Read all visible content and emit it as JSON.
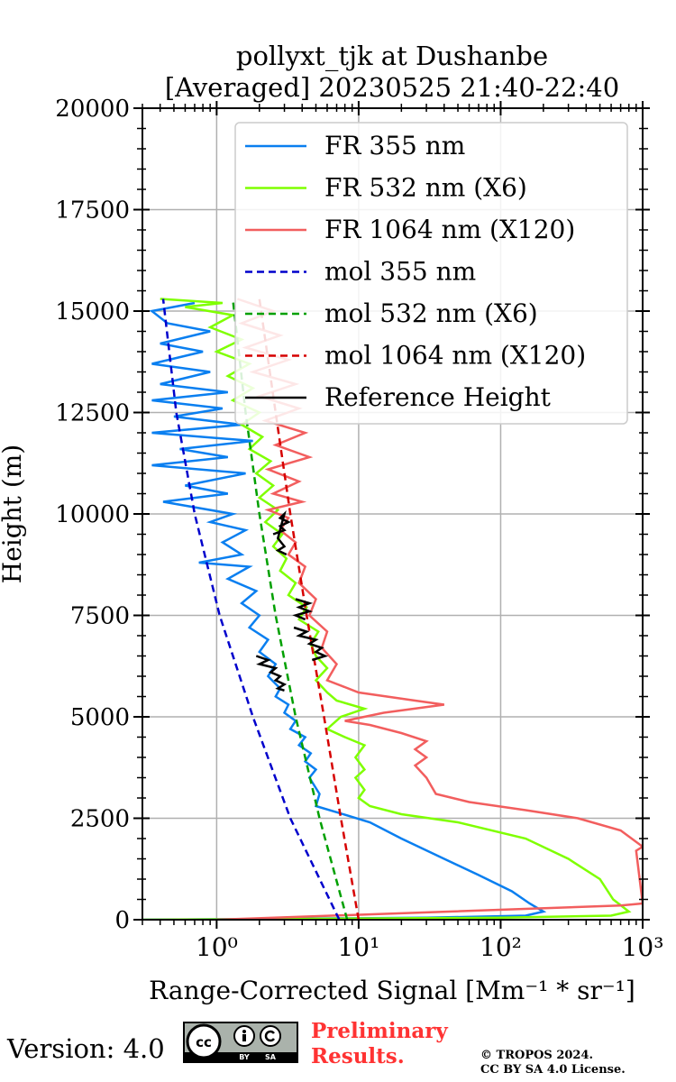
{
  "chart_data": {
    "type": "line",
    "title": [
      "pollyxt_tjk at Dushanbe",
      "[Averaged] 20230525 21:40-22:40"
    ],
    "xlabel": "Range-Corrected Signal [Mm⁻¹ * sr⁻¹]",
    "ylabel": "Height (m)",
    "xscale": "log",
    "xlim": [
      0.3,
      1000
    ],
    "ylim": [
      0,
      20000
    ],
    "xticks": [
      {
        "value": 1,
        "label": "10⁰"
      },
      {
        "value": 10,
        "label": "10¹"
      },
      {
        "value": 100,
        "label": "10²"
      },
      {
        "value": 1000,
        "label": "10³"
      }
    ],
    "yticks": [
      "0",
      "2500",
      "5000",
      "7500",
      "10000",
      "12500",
      "15000",
      "17500",
      "20000"
    ],
    "grid": true,
    "legend_position": "top-right",
    "series": [
      {
        "name": "FR 355 nm",
        "color": "#0a7ff0",
        "style": "solid",
        "points": [
          [
            0.3,
            0
          ],
          [
            30,
            50
          ],
          [
            150,
            100
          ],
          [
            200,
            200
          ],
          [
            160,
            400
          ],
          [
            120,
            700
          ],
          [
            70,
            1100
          ],
          [
            40,
            1500
          ],
          [
            20,
            2000
          ],
          [
            12,
            2400
          ],
          [
            7,
            2650
          ],
          [
            5,
            2800
          ],
          [
            5.3,
            3100
          ],
          [
            4.5,
            3500
          ],
          [
            5,
            3700
          ],
          [
            4.2,
            3900
          ],
          [
            4.6,
            4100
          ],
          [
            3.8,
            4300
          ],
          [
            4.2,
            4500
          ],
          [
            3.3,
            4700
          ],
          [
            3.6,
            4900
          ],
          [
            3,
            5100
          ],
          [
            3.2,
            5300
          ],
          [
            2.6,
            5500
          ],
          [
            2.8,
            5700
          ],
          [
            2.3,
            6000
          ],
          [
            2.6,
            6300
          ],
          [
            2,
            6600
          ],
          [
            2.3,
            6900
          ],
          [
            1.7,
            7200
          ],
          [
            2,
            7500
          ],
          [
            1.5,
            7800
          ],
          [
            1.9,
            8100
          ],
          [
            1.2,
            8400
          ],
          [
            1.7,
            8700
          ],
          [
            0.75,
            8800
          ],
          [
            1.5,
            9000
          ],
          [
            1.1,
            9300
          ],
          [
            1.6,
            9600
          ],
          [
            0.9,
            9800
          ],
          [
            1.3,
            10000
          ],
          [
            0.42,
            10300
          ],
          [
            1.2,
            10500
          ],
          [
            0.6,
            10700
          ],
          [
            1.6,
            11000
          ],
          [
            0.35,
            11200
          ],
          [
            1.2,
            11400
          ],
          [
            0.55,
            11600
          ],
          [
            1.8,
            11800
          ],
          [
            0.35,
            12000
          ],
          [
            1.5,
            12200
          ],
          [
            0.5,
            12400
          ],
          [
            1.1,
            12600
          ],
          [
            0.35,
            12800
          ],
          [
            1.2,
            13000
          ],
          [
            0.4,
            13200
          ],
          [
            0.9,
            13500
          ],
          [
            0.35,
            13700
          ],
          [
            0.8,
            14000
          ],
          [
            0.4,
            14200
          ],
          [
            0.9,
            14500
          ],
          [
            0.45,
            14700
          ],
          [
            0.35,
            15000
          ],
          [
            0.7,
            15200
          ]
        ]
      },
      {
        "name": "FR 532 nm (X6)",
        "color": "#7fff00",
        "style": "solid",
        "points": [
          [
            0.3,
            0
          ],
          [
            100,
            50
          ],
          [
            600,
            100
          ],
          [
            800,
            200
          ],
          [
            620,
            500
          ],
          [
            500,
            1000
          ],
          [
            300,
            1500
          ],
          [
            150,
            2000
          ],
          [
            50,
            2400
          ],
          [
            20,
            2600
          ],
          [
            12,
            2800
          ],
          [
            10,
            3000
          ],
          [
            11,
            3200
          ],
          [
            9.5,
            3500
          ],
          [
            11,
            3700
          ],
          [
            9.5,
            4000
          ],
          [
            11,
            4300
          ],
          [
            8,
            4500
          ],
          [
            6,
            4700
          ],
          [
            7.5,
            5000
          ],
          [
            11,
            5200
          ],
          [
            7,
            5400
          ],
          [
            6,
            5600
          ],
          [
            5,
            5900
          ],
          [
            6,
            6200
          ],
          [
            5,
            6500
          ],
          [
            4.6,
            6800
          ],
          [
            5.2,
            7100
          ],
          [
            3.8,
            7400
          ],
          [
            4.3,
            7700
          ],
          [
            3.2,
            8000
          ],
          [
            3.6,
            8300
          ],
          [
            2.8,
            8600
          ],
          [
            3.1,
            8900
          ],
          [
            2.5,
            9200
          ],
          [
            2.9,
            9500
          ],
          [
            2.2,
            9800
          ],
          [
            2.7,
            10100
          ],
          [
            2,
            10400
          ],
          [
            2.5,
            10700
          ],
          [
            1.9,
            11000
          ],
          [
            2.4,
            11300
          ],
          [
            1.7,
            11600
          ],
          [
            2.1,
            11900
          ],
          [
            1.5,
            12200
          ],
          [
            2,
            12500
          ],
          [
            1.3,
            12800
          ],
          [
            1.8,
            13100
          ],
          [
            1.2,
            13400
          ],
          [
            1.7,
            13700
          ],
          [
            1,
            14000
          ],
          [
            1.5,
            14300
          ],
          [
            0.9,
            14600
          ],
          [
            1.3,
            14900
          ],
          [
            0.6,
            15100
          ],
          [
            1.1,
            15200
          ],
          [
            0.4,
            15300
          ]
        ]
      },
      {
        "name": "FR 1064 nm (X120)",
        "color": "#f25e5e",
        "style": "solid",
        "points": [
          [
            1,
            0
          ],
          [
            700,
            350
          ],
          [
            1000,
            400
          ],
          [
            900,
            1700
          ],
          [
            1000,
            1800
          ],
          [
            700,
            2200
          ],
          [
            350,
            2500
          ],
          [
            150,
            2700
          ],
          [
            60,
            2900
          ],
          [
            35,
            3100
          ],
          [
            30,
            3500
          ],
          [
            25,
            3800
          ],
          [
            30,
            4000
          ],
          [
            25,
            4200
          ],
          [
            30,
            4400
          ],
          [
            20,
            4600
          ],
          [
            12,
            4800
          ],
          [
            8,
            4900
          ],
          [
            15,
            5100
          ],
          [
            40,
            5300
          ],
          [
            25,
            5400
          ],
          [
            10,
            5600
          ],
          [
            6,
            5900
          ],
          [
            7,
            6300
          ],
          [
            5.5,
            6700
          ],
          [
            6,
            7100
          ],
          [
            4.5,
            7500
          ],
          [
            5,
            7900
          ],
          [
            3.8,
            8300
          ],
          [
            4.2,
            8700
          ],
          [
            3.2,
            9000
          ],
          [
            3.6,
            9300
          ],
          [
            2.8,
            9600
          ],
          [
            3.2,
            9900
          ],
          [
            2.3,
            10100
          ],
          [
            4,
            10300
          ],
          [
            2.5,
            10500
          ],
          [
            3.8,
            10800
          ],
          [
            2.3,
            11100
          ],
          [
            4.5,
            11400
          ],
          [
            2.6,
            11700
          ],
          [
            4.2,
            12000
          ],
          [
            2.2,
            12300
          ],
          [
            3.8,
            12600
          ],
          [
            2,
            12900
          ],
          [
            3.6,
            13200
          ],
          [
            1.8,
            13500
          ],
          [
            3.2,
            13800
          ],
          [
            1.6,
            14100
          ],
          [
            2.8,
            14400
          ],
          [
            1.5,
            14700
          ],
          [
            2.5,
            15000
          ],
          [
            1.4,
            15300
          ]
        ]
      },
      {
        "name": "mol 355 nm",
        "color": "#0000cc",
        "style": "dashed",
        "points": [
          [
            7.3,
            0
          ],
          [
            3.3,
            2500
          ],
          [
            1.8,
            5000
          ],
          [
            1.05,
            7500
          ],
          [
            0.7,
            10000
          ],
          [
            0.52,
            12500
          ],
          [
            0.42,
            15300
          ]
        ]
      },
      {
        "name": "mol 532 nm (X6)",
        "color": "#00a000",
        "style": "dashed",
        "points": [
          [
            8.3,
            0
          ],
          [
            5.3,
            2500
          ],
          [
            3.6,
            5000
          ],
          [
            2.6,
            7500
          ],
          [
            2,
            10000
          ],
          [
            1.6,
            12500
          ],
          [
            1.3,
            15300
          ]
        ]
      },
      {
        "name": "mol 1064 nm (X120)",
        "color": "#d60000",
        "style": "dashed",
        "points": [
          [
            10,
            0
          ],
          [
            7.5,
            2500
          ],
          [
            5.7,
            5000
          ],
          [
            4.3,
            7500
          ],
          [
            3.3,
            10000
          ],
          [
            2.6,
            12500
          ],
          [
            2,
            15300
          ]
        ]
      },
      {
        "name": "Reference Height",
        "color": "#000000",
        "style": "solid",
        "points": [
          [
            1.9,
            6500
          ],
          [
            2.3,
            6400
          ],
          [
            2,
            6300
          ],
          [
            2.6,
            6200
          ],
          [
            2.4,
            6100
          ],
          [
            2.8,
            6000
          ],
          [
            2.6,
            5900
          ],
          [
            3,
            5800
          ],
          [
            2.7,
            5700
          ],
          [
            3,
            5650
          ],
          [
            3.5,
            7200
          ],
          [
            4.3,
            7100
          ],
          [
            3.8,
            7000
          ],
          [
            5,
            6900
          ],
          [
            4.5,
            6800
          ],
          [
            5.5,
            6700
          ],
          [
            5,
            6600
          ],
          [
            5.8,
            6500
          ],
          [
            4.7,
            6400
          ],
          [
            3.6,
            7900
          ],
          [
            4.5,
            7800
          ],
          [
            3.8,
            7700
          ],
          [
            4.5,
            7600
          ],
          [
            3.6,
            7500
          ],
          [
            4.2,
            7400
          ],
          [
            2.5,
            9500
          ],
          [
            3,
            9600
          ],
          [
            2.8,
            9700
          ],
          [
            3.2,
            9800
          ],
          [
            2.8,
            9900
          ],
          [
            3,
            10000
          ],
          [
            2.7,
            9400
          ],
          [
            3,
            9200
          ],
          [
            2.7,
            9100
          ],
          [
            3.1,
            9000
          ]
        ]
      }
    ]
  },
  "footer": {
    "version": "Version: 4.0",
    "license_badge": [
      "cc",
      "BY",
      "SA"
    ],
    "preliminary": [
      "Preliminary",
      "Results."
    ],
    "copyright": [
      "© TROPOS 2024.",
      "CC BY SA 4.0 License."
    ]
  }
}
